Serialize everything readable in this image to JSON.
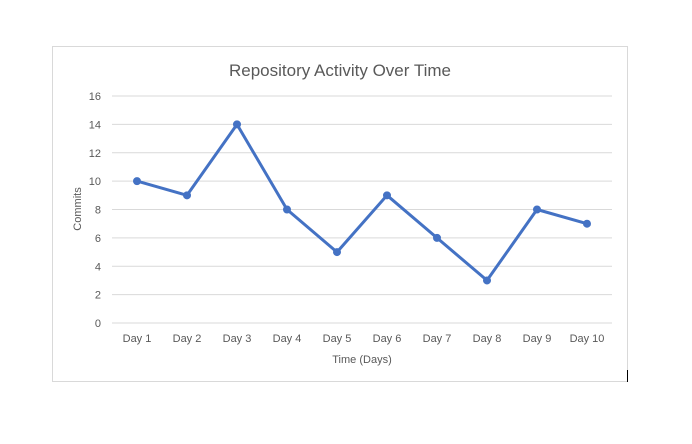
{
  "chart_data": {
    "type": "line",
    "title": "Repository Activity Over Time",
    "xlabel": "Time (Days)",
    "ylabel": "Commits",
    "categories": [
      "Day 1",
      "Day 2",
      "Day 3",
      "Day 4",
      "Day 5",
      "Day 6",
      "Day 7",
      "Day 8",
      "Day 9",
      "Day 10"
    ],
    "series": [
      {
        "values": [
          10,
          9,
          14,
          8,
          5,
          9,
          6,
          3,
          8,
          7
        ]
      }
    ],
    "ylim": [
      0,
      16
    ],
    "yticks": [
      "0",
      "2",
      "4",
      "6",
      "8",
      "10",
      "12",
      "14",
      "16"
    ],
    "grid": true,
    "legend": "none",
    "line_color": "#4472c4",
    "grid_color": "#d9d9d9",
    "text_color": "#595959",
    "title_color": "#595959"
  }
}
